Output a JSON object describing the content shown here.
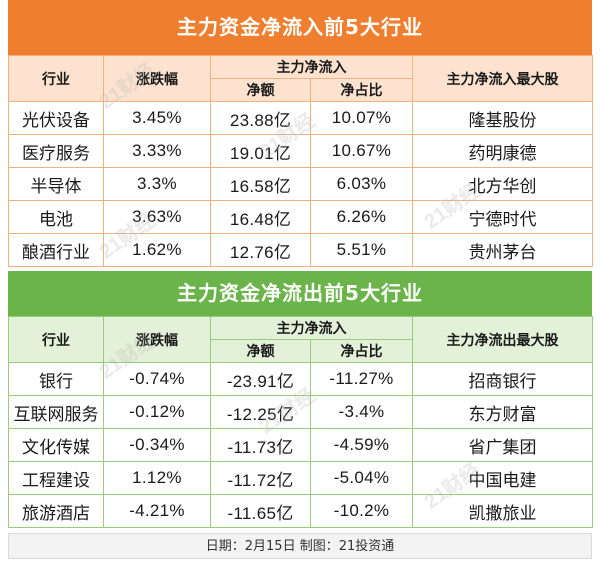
{
  "inflow": {
    "title": "主力资金净流入前5大行业",
    "headers": {
      "industry": "行业",
      "change": "涨跌幅",
      "net_group": "主力净流入",
      "net_amount": "净额",
      "net_ratio": "净占比",
      "top_stock": "主力净流入最大股"
    },
    "rows": [
      {
        "industry": "光伏设备",
        "change": "3.45%",
        "net_amount": "23.88亿",
        "net_ratio": "10.07%",
        "top_stock": "隆基股份"
      },
      {
        "industry": "医疗服务",
        "change": "3.33%",
        "net_amount": "19.01亿",
        "net_ratio": "10.67%",
        "top_stock": "药明康德"
      },
      {
        "industry": "半导体",
        "change": "3.3%",
        "net_amount": "16.58亿",
        "net_ratio": "6.03%",
        "top_stock": "北方华创"
      },
      {
        "industry": "电池",
        "change": "3.63%",
        "net_amount": "16.48亿",
        "net_ratio": "6.26%",
        "top_stock": "宁德时代"
      },
      {
        "industry": "酿酒行业",
        "change": "1.62%",
        "net_amount": "12.76亿",
        "net_ratio": "5.51%",
        "top_stock": "贵州茅台"
      }
    ]
  },
  "outflow": {
    "title": "主力资金净流出前5大行业",
    "headers": {
      "industry": "行业",
      "change": "涨跌幅",
      "net_group": "主力净流入",
      "net_amount": "净额",
      "net_ratio": "净占比",
      "top_stock": "主力净流出最大股"
    },
    "rows": [
      {
        "industry": "银行",
        "change": "-0.74%",
        "net_amount": "-23.91亿",
        "net_ratio": "-11.27%",
        "top_stock": "招商银行"
      },
      {
        "industry": "互联网服务",
        "change": "-0.12%",
        "net_amount": "-12.25亿",
        "net_ratio": "-3.4%",
        "top_stock": "东方财富"
      },
      {
        "industry": "文化传媒",
        "change": "-0.34%",
        "net_amount": "-11.73亿",
        "net_ratio": "-4.59%",
        "top_stock": "省广集团"
      },
      {
        "industry": "工程建设",
        "change": "1.12%",
        "net_amount": "-11.72亿",
        "net_ratio": "-5.04%",
        "top_stock": "中国电建"
      },
      {
        "industry": "旅游酒店",
        "change": "-4.21%",
        "net_amount": "-11.65亿",
        "net_ratio": "-10.2%",
        "top_stock": "凯撒旅业"
      }
    ]
  },
  "footer": "日期：2月15日 制图：21投资通",
  "watermark": "21财经",
  "colors": {
    "inflow_title": "#f07e2f",
    "inflow_header": "#fde3cf",
    "outflow_title": "#6bb44a",
    "outflow_header": "#e3f1d8"
  }
}
